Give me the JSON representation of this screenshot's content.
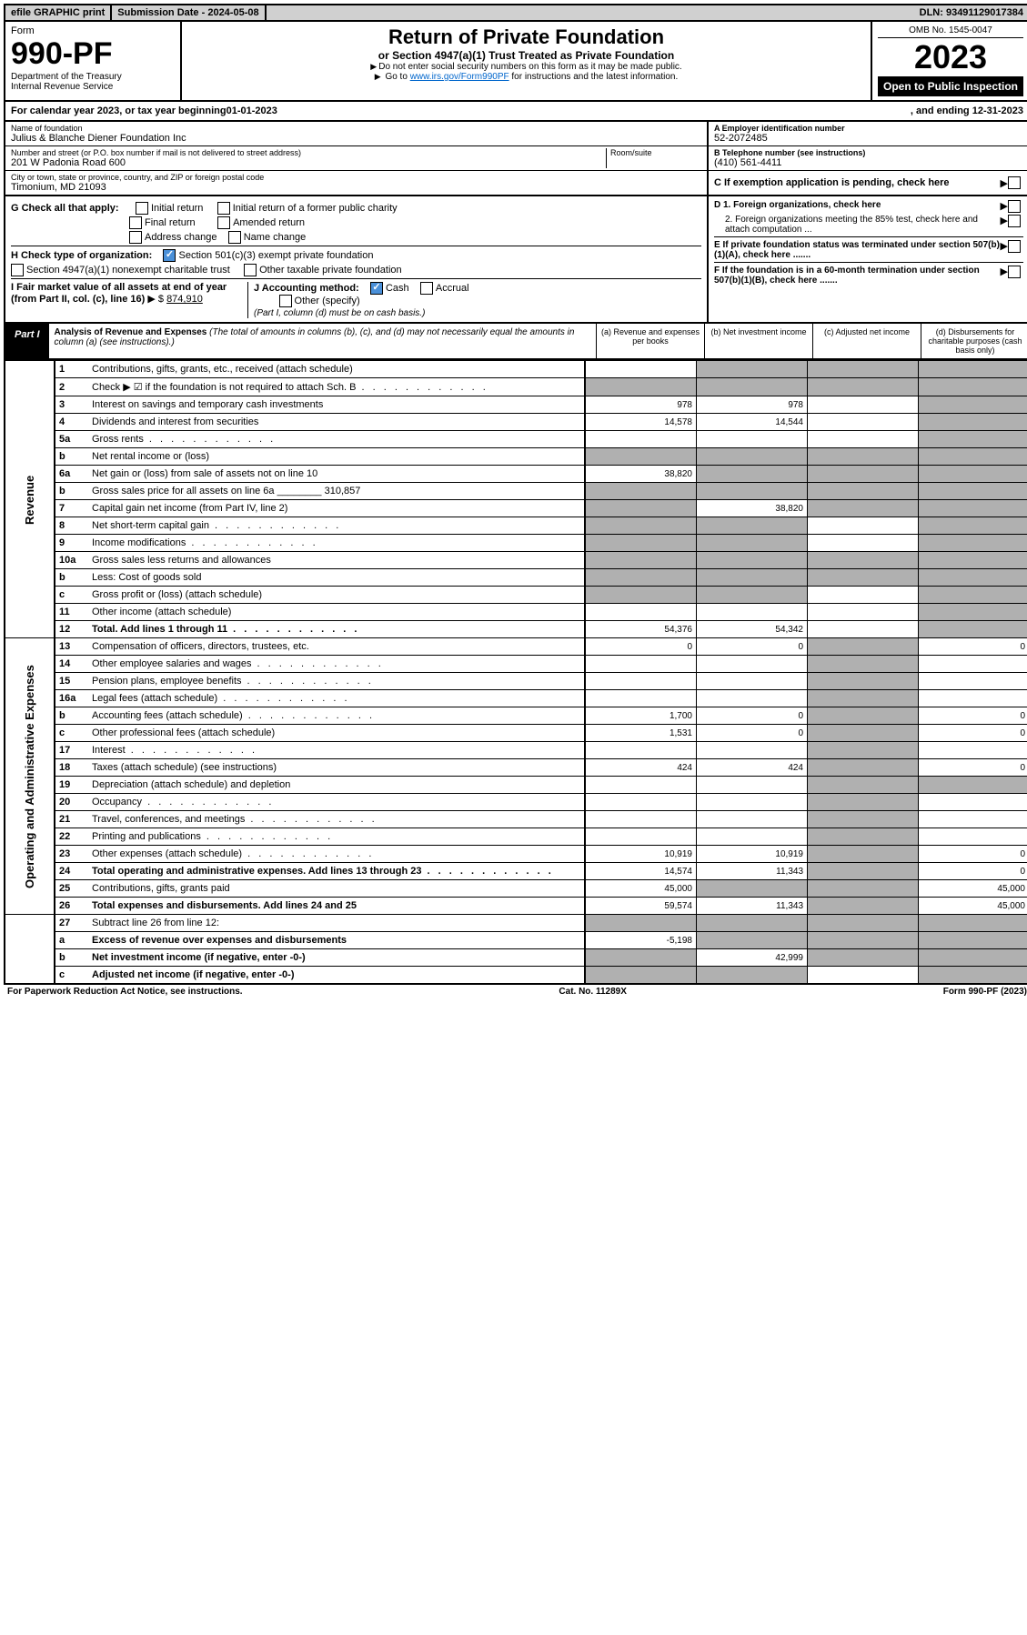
{
  "topbar": {
    "efile": "efile GRAPHIC print",
    "subdate_label": "Submission Date - ",
    "subdate": "2024-05-08",
    "dln_label": "DLN: ",
    "dln": "93491129017384"
  },
  "header": {
    "form_label": "Form",
    "form_no": "990-PF",
    "dept": "Department of the Treasury",
    "irs": "Internal Revenue Service",
    "title": "Return of Private Foundation",
    "subtitle": "or Section 4947(a)(1) Trust Treated as Private Foundation",
    "note1": "Do not enter social security numbers on this form as it may be made public.",
    "note2_pre": "Go to ",
    "note2_link": "www.irs.gov/Form990PF",
    "note2_post": " for instructions and the latest information.",
    "omb": "OMB No. 1545-0047",
    "year": "2023",
    "open": "Open to Public Inspection"
  },
  "calyear": {
    "pre": "For calendar year 2023, or tax year beginning ",
    "begin": "01-01-2023",
    "mid": ", and ending ",
    "end": "12-31-2023"
  },
  "info": {
    "name_lbl": "Name of foundation",
    "name": "Julius & Blanche Diener Foundation Inc",
    "ein_lbl": "A Employer identification number",
    "ein": "52-2072485",
    "addr_lbl": "Number and street (or P.O. box number if mail is not delivered to street address)",
    "addr": "201 W Padonia Road 600",
    "room_lbl": "Room/suite",
    "tel_lbl": "B Telephone number (see instructions)",
    "tel": "(410) 561-4411",
    "city_lbl": "City or town, state or province, country, and ZIP or foreign postal code",
    "city": "Timonium, MD  21093",
    "c_lbl": "C If exemption application is pending, check here"
  },
  "checks": {
    "g_lbl": "G Check all that apply:",
    "g1": "Initial return",
    "g2": "Initial return of a former public charity",
    "g3": "Final return",
    "g4": "Amended return",
    "g5": "Address change",
    "g6": "Name change",
    "h_lbl": "H Check type of organization:",
    "h1": "Section 501(c)(3) exempt private foundation",
    "h2": "Section 4947(a)(1) nonexempt charitable trust",
    "h3": "Other taxable private foundation",
    "i_lbl": "I Fair market value of all assets at end of year (from Part II, col. (c), line 16)",
    "i_val": "874,910",
    "j_lbl": "J Accounting method:",
    "j1": "Cash",
    "j2": "Accrual",
    "j3": "Other (specify)",
    "j_note": "(Part I, column (d) must be on cash basis.)",
    "d1": "D 1. Foreign organizations, check here",
    "d2": "2. Foreign organizations meeting the 85% test, check here and attach computation ...",
    "e": "E  If private foundation status was terminated under section 507(b)(1)(A), check here .......",
    "f": "F  If the foundation is in a 60-month termination under section 507(b)(1)(B), check here ......."
  },
  "part1": {
    "label": "Part I",
    "title": "Analysis of Revenue and Expenses",
    "note": " (The total of amounts in columns (b), (c), and (d) may not necessarily equal the amounts in column (a) (see instructions).)",
    "col_a": "(a)   Revenue and expenses per books",
    "col_b": "(b)   Net investment income",
    "col_c": "(c)   Adjusted net income",
    "col_d": "(d)   Disbursements for charitable purposes (cash basis only)"
  },
  "sections": {
    "revenue": "Revenue",
    "expenses": "Operating and Administrative Expenses"
  },
  "rows": [
    {
      "n": "1",
      "d": "Contributions, gifts, grants, etc., received (attach schedule)",
      "a": "",
      "b": "shaded",
      "c": "shaded",
      "dd": "shaded"
    },
    {
      "n": "2",
      "d": "Check ▶ ☑ if the foundation is not required to attach Sch. B",
      "a": "shaded",
      "b": "shaded",
      "c": "shaded",
      "dd": "shaded",
      "dotted": true
    },
    {
      "n": "3",
      "d": "Interest on savings and temporary cash investments",
      "a": "978",
      "b": "978",
      "c": "",
      "dd": "shaded"
    },
    {
      "n": "4",
      "d": "Dividends and interest from securities",
      "a": "14,578",
      "b": "14,544",
      "c": "",
      "dd": "shaded"
    },
    {
      "n": "5a",
      "d": "Gross rents",
      "a": "",
      "b": "",
      "c": "",
      "dd": "shaded",
      "dotted": true
    },
    {
      "n": "b",
      "d": "Net rental income or (loss)",
      "a": "shaded",
      "b": "shaded",
      "c": "shaded",
      "dd": "shaded"
    },
    {
      "n": "6a",
      "d": "Net gain or (loss) from sale of assets not on line 10",
      "a": "38,820",
      "b": "shaded",
      "c": "shaded",
      "dd": "shaded"
    },
    {
      "n": "b",
      "d": "Gross sales price for all assets on line 6a ________ 310,857",
      "a": "shaded",
      "b": "shaded",
      "c": "shaded",
      "dd": "shaded"
    },
    {
      "n": "7",
      "d": "Capital gain net income (from Part IV, line 2)",
      "a": "shaded",
      "b": "38,820",
      "c": "shaded",
      "dd": "shaded"
    },
    {
      "n": "8",
      "d": "Net short-term capital gain",
      "a": "shaded",
      "b": "shaded",
      "c": "",
      "dd": "shaded",
      "dotted": true
    },
    {
      "n": "9",
      "d": "Income modifications",
      "a": "shaded",
      "b": "shaded",
      "c": "",
      "dd": "shaded",
      "dotted": true
    },
    {
      "n": "10a",
      "d": "Gross sales less returns and allowances",
      "a": "shaded",
      "b": "shaded",
      "c": "shaded",
      "dd": "shaded"
    },
    {
      "n": "b",
      "d": "Less: Cost of goods sold",
      "a": "shaded",
      "b": "shaded",
      "c": "shaded",
      "dd": "shaded"
    },
    {
      "n": "c",
      "d": "Gross profit or (loss) (attach schedule)",
      "a": "shaded",
      "b": "shaded",
      "c": "",
      "dd": "shaded"
    },
    {
      "n": "11",
      "d": "Other income (attach schedule)",
      "a": "",
      "b": "",
      "c": "",
      "dd": "shaded"
    },
    {
      "n": "12",
      "d": "Total. Add lines 1 through 11",
      "a": "54,376",
      "b": "54,342",
      "c": "",
      "dd": "shaded",
      "bold": true,
      "dotted": true
    }
  ],
  "exprows": [
    {
      "n": "13",
      "d": "Compensation of officers, directors, trustees, etc.",
      "a": "0",
      "b": "0",
      "c": "shaded",
      "dd": "0"
    },
    {
      "n": "14",
      "d": "Other employee salaries and wages",
      "a": "",
      "b": "",
      "c": "shaded",
      "dd": "",
      "dotted": true
    },
    {
      "n": "15",
      "d": "Pension plans, employee benefits",
      "a": "",
      "b": "",
      "c": "shaded",
      "dd": "",
      "dotted": true
    },
    {
      "n": "16a",
      "d": "Legal fees (attach schedule)",
      "a": "",
      "b": "",
      "c": "shaded",
      "dd": "",
      "dotted": true
    },
    {
      "n": "b",
      "d": "Accounting fees (attach schedule)",
      "a": "1,700",
      "b": "0",
      "c": "shaded",
      "dd": "0",
      "dotted": true
    },
    {
      "n": "c",
      "d": "Other professional fees (attach schedule)",
      "a": "1,531",
      "b": "0",
      "c": "shaded",
      "dd": "0"
    },
    {
      "n": "17",
      "d": "Interest",
      "a": "",
      "b": "",
      "c": "shaded",
      "dd": "",
      "dotted": true
    },
    {
      "n": "18",
      "d": "Taxes (attach schedule) (see instructions)",
      "a": "424",
      "b": "424",
      "c": "shaded",
      "dd": "0"
    },
    {
      "n": "19",
      "d": "Depreciation (attach schedule) and depletion",
      "a": "",
      "b": "",
      "c": "shaded",
      "dd": "shaded"
    },
    {
      "n": "20",
      "d": "Occupancy",
      "a": "",
      "b": "",
      "c": "shaded",
      "dd": "",
      "dotted": true
    },
    {
      "n": "21",
      "d": "Travel, conferences, and meetings",
      "a": "",
      "b": "",
      "c": "shaded",
      "dd": "",
      "dotted": true
    },
    {
      "n": "22",
      "d": "Printing and publications",
      "a": "",
      "b": "",
      "c": "shaded",
      "dd": "",
      "dotted": true
    },
    {
      "n": "23",
      "d": "Other expenses (attach schedule)",
      "a": "10,919",
      "b": "10,919",
      "c": "shaded",
      "dd": "0",
      "dotted": true
    },
    {
      "n": "24",
      "d": "Total operating and administrative expenses. Add lines 13 through 23",
      "a": "14,574",
      "b": "11,343",
      "c": "shaded",
      "dd": "0",
      "bold": true,
      "dotted": true
    },
    {
      "n": "25",
      "d": "Contributions, gifts, grants paid",
      "a": "45,000",
      "b": "shaded",
      "c": "shaded",
      "dd": "45,000"
    },
    {
      "n": "26",
      "d": "Total expenses and disbursements. Add lines 24 and 25",
      "a": "59,574",
      "b": "11,343",
      "c": "shaded",
      "dd": "45,000",
      "bold": true
    }
  ],
  "subrows": [
    {
      "n": "27",
      "d": "Subtract line 26 from line 12:",
      "a": "shaded",
      "b": "shaded",
      "c": "shaded",
      "dd": "shaded"
    },
    {
      "n": "a",
      "d": "Excess of revenue over expenses and disbursements",
      "a": "-5,198",
      "b": "shaded",
      "c": "shaded",
      "dd": "shaded",
      "bold": true
    },
    {
      "n": "b",
      "d": "Net investment income (if negative, enter -0-)",
      "a": "shaded",
      "b": "42,999",
      "c": "shaded",
      "dd": "shaded",
      "bold": true
    },
    {
      "n": "c",
      "d": "Adjusted net income (if negative, enter -0-)",
      "a": "shaded",
      "b": "shaded",
      "c": "",
      "dd": "shaded",
      "bold": true
    }
  ],
  "footer": {
    "left": "For Paperwork Reduction Act Notice, see instructions.",
    "mid": "Cat. No. 11289X",
    "right": "Form 990-PF (2023)"
  }
}
